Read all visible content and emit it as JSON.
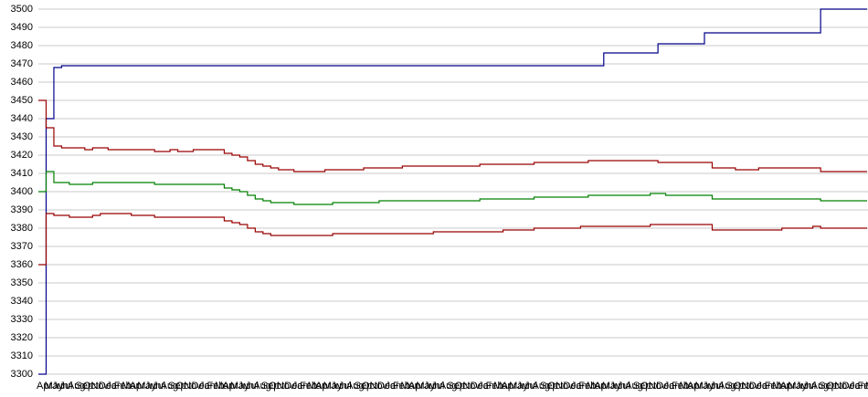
{
  "chart_data": {
    "type": "line",
    "categories": [
      "Apr",
      "May",
      "Jun",
      "Jul",
      "Aug",
      "Sep",
      "Oct",
      "Nov",
      "Dec",
      "Jan",
      "Feb",
      "Mar",
      "Apr",
      "May",
      "Jun",
      "Jul",
      "Aug",
      "Sep",
      "Oct",
      "Nov",
      "Dec",
      "Jan",
      "Feb",
      "Mar",
      "Apr",
      "May",
      "Jun",
      "Jul",
      "Aug",
      "Sep",
      "Oct",
      "Nov",
      "Dec",
      "Jan",
      "Feb",
      "Mar",
      "Apr",
      "May",
      "Jun",
      "Jul",
      "Aug",
      "Sep",
      "Oct",
      "Nov",
      "Dec",
      "Jan",
      "Feb",
      "Mar",
      "Apr",
      "May",
      "Jun",
      "Jul",
      "Aug",
      "Sep",
      "Oct",
      "Nov",
      "Dec",
      "Jan",
      "Feb",
      "Mar",
      "Apr",
      "May",
      "Jun",
      "Jul",
      "Aug",
      "Sep",
      "Oct",
      "Nov",
      "Dec",
      "Jan",
      "Feb",
      "Mar",
      "Apr",
      "May",
      "Jun",
      "Jul",
      "Aug",
      "Sep",
      "Oct",
      "Nov",
      "Dec",
      "Jan",
      "Feb",
      "Mar",
      "Apr",
      "May",
      "Jun",
      "Jul",
      "Aug",
      "Sep",
      "Oct",
      "Nov",
      "Dec",
      "Jan",
      "Feb",
      "Mar",
      "Apr",
      "May",
      "Jun",
      "Jul",
      "Aug",
      "Sep",
      "Oct",
      "Nov",
      "Dec",
      "Jan",
      "Feb",
      "Mar"
    ],
    "series": [
      {
        "color": "#00008b",
        "values": [
          3300,
          3440,
          3468,
          3469,
          3469,
          3469,
          3469,
          3469,
          3469,
          3469,
          3469,
          3469,
          3469,
          3469,
          3469,
          3469,
          3469,
          3469,
          3469,
          3469,
          3469,
          3469,
          3469,
          3469,
          3469,
          3469,
          3469,
          3469,
          3469,
          3469,
          3469,
          3469,
          3469,
          3469,
          3469,
          3469,
          3469,
          3469,
          3469,
          3469,
          3469,
          3469,
          3469,
          3469,
          3469,
          3469,
          3469,
          3469,
          3469,
          3469,
          3469,
          3469,
          3469,
          3469,
          3469,
          3469,
          3469,
          3469,
          3469,
          3469,
          3469,
          3469,
          3469,
          3469,
          3469,
          3469,
          3469,
          3469,
          3469,
          3469,
          3469,
          3469,
          3469,
          3476,
          3476,
          3476,
          3476,
          3476,
          3476,
          3476,
          3481,
          3481,
          3481,
          3481,
          3481,
          3481,
          3487,
          3487,
          3487,
          3487,
          3487,
          3487,
          3487,
          3487,
          3487,
          3487,
          3487,
          3487,
          3487,
          3487,
          3487,
          3500,
          3500,
          3500,
          3500,
          3500,
          3500,
          3500
        ]
      },
      {
        "color": "#990000",
        "values": [
          3450,
          3435,
          3425,
          3424,
          3424,
          3424,
          3423,
          3424,
          3424,
          3423,
          3423,
          3423,
          3423,
          3423,
          3423,
          3422,
          3422,
          3423,
          3422,
          3422,
          3423,
          3423,
          3423,
          3423,
          3421,
          3420,
          3419,
          3417,
          3415,
          3414,
          3413,
          3412,
          3412,
          3411,
          3411,
          3411,
          3411,
          3412,
          3412,
          3412,
          3412,
          3412,
          3413,
          3413,
          3413,
          3413,
          3413,
          3414,
          3414,
          3414,
          3414,
          3414,
          3414,
          3414,
          3414,
          3414,
          3414,
          3415,
          3415,
          3415,
          3415,
          3415,
          3415,
          3415,
          3416,
          3416,
          3416,
          3416,
          3416,
          3416,
          3416,
          3417,
          3417,
          3417,
          3417,
          3417,
          3417,
          3417,
          3417,
          3417,
          3416,
          3416,
          3416,
          3416,
          3416,
          3416,
          3416,
          3413,
          3413,
          3413,
          3412,
          3412,
          3412,
          3413,
          3413,
          3413,
          3413,
          3413,
          3413,
          3413,
          3413,
          3411,
          3411,
          3411,
          3411,
          3411,
          3411,
          3411
        ]
      },
      {
        "color": "#008000",
        "values": [
          3400,
          3411,
          3405,
          3405,
          3404,
          3404,
          3404,
          3405,
          3405,
          3405,
          3405,
          3405,
          3405,
          3405,
          3405,
          3404,
          3404,
          3404,
          3404,
          3404,
          3404,
          3404,
          3404,
          3404,
          3402,
          3401,
          3400,
          3398,
          3396,
          3395,
          3394,
          3394,
          3394,
          3393,
          3393,
          3393,
          3393,
          3393,
          3394,
          3394,
          3394,
          3394,
          3394,
          3394,
          3395,
          3395,
          3395,
          3395,
          3395,
          3395,
          3395,
          3395,
          3395,
          3395,
          3395,
          3395,
          3395,
          3396,
          3396,
          3396,
          3396,
          3396,
          3396,
          3396,
          3397,
          3397,
          3397,
          3397,
          3397,
          3397,
          3397,
          3398,
          3398,
          3398,
          3398,
          3398,
          3398,
          3398,
          3398,
          3399,
          3399,
          3398,
          3398,
          3398,
          3398,
          3398,
          3398,
          3396,
          3396,
          3396,
          3396,
          3396,
          3396,
          3396,
          3396,
          3396,
          3396,
          3396,
          3396,
          3396,
          3396,
          3395,
          3395,
          3395,
          3395,
          3395,
          3395,
          3395
        ]
      },
      {
        "color": "#990000",
        "values": [
          3360,
          3388,
          3387,
          3387,
          3386,
          3386,
          3386,
          3387,
          3388,
          3388,
          3388,
          3388,
          3387,
          3387,
          3387,
          3386,
          3386,
          3386,
          3386,
          3386,
          3386,
          3386,
          3386,
          3386,
          3384,
          3383,
          3382,
          3380,
          3378,
          3377,
          3376,
          3376,
          3376,
          3376,
          3376,
          3376,
          3376,
          3376,
          3377,
          3377,
          3377,
          3377,
          3377,
          3377,
          3377,
          3377,
          3377,
          3377,
          3377,
          3377,
          3377,
          3378,
          3378,
          3378,
          3378,
          3378,
          3378,
          3378,
          3378,
          3378,
          3379,
          3379,
          3379,
          3379,
          3380,
          3380,
          3380,
          3380,
          3380,
          3380,
          3381,
          3381,
          3381,
          3381,
          3381,
          3381,
          3381,
          3381,
          3381,
          3382,
          3382,
          3382,
          3382,
          3382,
          3382,
          3382,
          3382,
          3379,
          3379,
          3379,
          3379,
          3379,
          3379,
          3379,
          3379,
          3379,
          3380,
          3380,
          3380,
          3380,
          3381,
          3380,
          3380,
          3380,
          3380,
          3380,
          3380,
          3380
        ]
      }
    ],
    "ylim": [
      3300,
      3500
    ],
    "yticks": [
      3300,
      3310,
      3320,
      3330,
      3340,
      3350,
      3360,
      3370,
      3380,
      3390,
      3400,
      3410,
      3420,
      3430,
      3440,
      3450,
      3460,
      3470,
      3480,
      3490,
      3500
    ],
    "grid": true
  }
}
